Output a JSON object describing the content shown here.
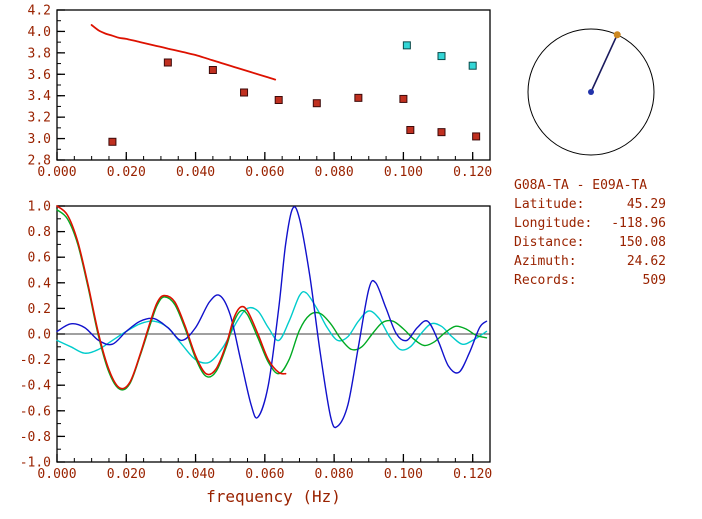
{
  "style": {
    "ink": "#992200",
    "axis": "#000000",
    "background": "#ffffff"
  },
  "station_info": {
    "pair": "G08A-TA - E09A-TA",
    "fields": [
      {
        "label": "Latitude:",
        "value": "45.29"
      },
      {
        "label": "Longitude:",
        "value": "-118.96"
      },
      {
        "label": "Distance:",
        "value": "150.08"
      },
      {
        "label": "Azimuth:",
        "value": "24.62"
      },
      {
        "label": "Records:",
        "value": "509"
      }
    ]
  },
  "compass": {
    "azimuth_deg": 24.62,
    "line_color": "#1b1b5e",
    "center_dot_color": "#2233aa",
    "end_dot_color": "#cc8822"
  },
  "chart_data": [
    {
      "type": "scatter",
      "title": "",
      "xlabel": "",
      "ylabel": "",
      "xlim": [
        0,
        0.125
      ],
      "ylim": [
        2.8,
        4.2
      ],
      "x_major_ticks": [
        0,
        0.02,
        0.04,
        0.06,
        0.08,
        0.1,
        0.12
      ],
      "x_tick_labels": [
        "0.000",
        "0.020",
        "0.040",
        "0.060",
        "0.080",
        "0.100",
        "0.120"
      ],
      "x_minor_step": 0.005,
      "y_major_ticks": [
        2.8,
        3.0,
        3.2,
        3.4,
        3.6,
        3.8,
        4.0,
        4.2
      ],
      "y_tick_labels": [
        "2.8",
        "3.0",
        "3.2",
        "3.4",
        "3.6",
        "3.8",
        "4.0",
        "4.2"
      ],
      "y_minor_step": 0.1,
      "grid": false,
      "zero_line": false,
      "series": [
        {
          "name": "reference-dispersion-curve",
          "type": "line",
          "color": "#dd1100",
          "width": 1.8,
          "points": [
            [
              0.01,
              4.06
            ],
            [
              0.012,
              4.01
            ],
            [
              0.014,
              3.98
            ],
            [
              0.016,
              3.96
            ],
            [
              0.018,
              3.94
            ],
            [
              0.02,
              3.93
            ],
            [
              0.024,
              3.9
            ],
            [
              0.028,
              3.87
            ],
            [
              0.032,
              3.84
            ],
            [
              0.036,
              3.81
            ],
            [
              0.04,
              3.78
            ],
            [
              0.044,
              3.74
            ],
            [
              0.048,
              3.7
            ],
            [
              0.052,
              3.66
            ],
            [
              0.056,
              3.62
            ],
            [
              0.06,
              3.58
            ],
            [
              0.063,
              3.55
            ]
          ]
        },
        {
          "name": "velocity-picks-red",
          "type": "scatter",
          "marker": "square",
          "color": "#c03020",
          "edge": "#3c0a0a",
          "size": 7,
          "points": [
            [
              0.016,
              2.97
            ],
            [
              0.032,
              3.71
            ],
            [
              0.045,
              3.64
            ],
            [
              0.054,
              3.43
            ],
            [
              0.064,
              3.36
            ],
            [
              0.075,
              3.33
            ],
            [
              0.087,
              3.38
            ],
            [
              0.1,
              3.37
            ],
            [
              0.102,
              3.08
            ],
            [
              0.111,
              3.06
            ],
            [
              0.121,
              3.02
            ]
          ]
        },
        {
          "name": "velocity-picks-cyan",
          "type": "scatter",
          "marker": "square",
          "color": "#33d6d6",
          "edge": "#0a4a4a",
          "size": 7,
          "points": [
            [
              0.101,
              3.87
            ],
            [
              0.111,
              3.77
            ],
            [
              0.12,
              3.68
            ]
          ]
        }
      ]
    },
    {
      "type": "line",
      "title": "",
      "xlabel": "frequency (Hz)",
      "ylabel": "",
      "xlim": [
        0,
        0.125
      ],
      "ylim": [
        -1.0,
        1.0
      ],
      "x_major_ticks": [
        0,
        0.02,
        0.04,
        0.06,
        0.08,
        0.1,
        0.12
      ],
      "x_tick_labels": [
        "0.000",
        "0.020",
        "0.040",
        "0.060",
        "0.080",
        "0.100",
        "0.120"
      ],
      "x_minor_step": 0.005,
      "y_major_ticks": [
        -1.0,
        -0.8,
        -0.6,
        -0.4,
        -0.2,
        0.0,
        0.2,
        0.4,
        0.6,
        0.8,
        1.0
      ],
      "y_tick_labels": [
        "-1.0",
        "-0.8",
        "-0.6",
        "-0.4",
        "-0.2",
        "0.0",
        "0.2",
        "0.4",
        "0.6",
        "0.8",
        "1.0"
      ],
      "y_minor_step": 0.1,
      "grid": false,
      "zero_line": true,
      "series": [
        {
          "name": "waveform-cyan",
          "type": "line",
          "color": "#00cccc",
          "width": 1.4,
          "points": [
            [
              0.0,
              -0.05
            ],
            [
              0.004,
              -0.1
            ],
            [
              0.008,
              -0.15
            ],
            [
              0.012,
              -0.12
            ],
            [
              0.016,
              -0.05
            ],
            [
              0.02,
              0.02
            ],
            [
              0.024,
              0.08
            ],
            [
              0.028,
              0.1
            ],
            [
              0.032,
              0.05
            ],
            [
              0.036,
              -0.08
            ],
            [
              0.04,
              -0.2
            ],
            [
              0.044,
              -0.22
            ],
            [
              0.048,
              -0.1
            ],
            [
              0.052,
              0.1
            ],
            [
              0.055,
              0.2
            ],
            [
              0.058,
              0.18
            ],
            [
              0.061,
              0.05
            ],
            [
              0.064,
              -0.05
            ],
            [
              0.067,
              0.1
            ],
            [
              0.07,
              0.3
            ],
            [
              0.072,
              0.32
            ],
            [
              0.075,
              0.2
            ],
            [
              0.078,
              0.05
            ],
            [
              0.081,
              -0.05
            ],
            [
              0.084,
              -0.02
            ],
            [
              0.087,
              0.1
            ],
            [
              0.09,
              0.18
            ],
            [
              0.093,
              0.12
            ],
            [
              0.096,
              -0.02
            ],
            [
              0.099,
              -0.12
            ],
            [
              0.102,
              -0.1
            ],
            [
              0.105,
              0.0
            ],
            [
              0.108,
              0.08
            ],
            [
              0.111,
              0.06
            ],
            [
              0.114,
              -0.02
            ],
            [
              0.117,
              -0.08
            ],
            [
              0.12,
              -0.05
            ],
            [
              0.124,
              0.02
            ]
          ]
        },
        {
          "name": "waveform-green",
          "type": "line",
          "color": "#00aa22",
          "width": 1.4,
          "points": [
            [
              0.0,
              0.97
            ],
            [
              0.003,
              0.9
            ],
            [
              0.006,
              0.7
            ],
            [
              0.009,
              0.36
            ],
            [
              0.012,
              -0.02
            ],
            [
              0.015,
              -0.3
            ],
            [
              0.018,
              -0.43
            ],
            [
              0.021,
              -0.39
            ],
            [
              0.024,
              -0.17
            ],
            [
              0.027,
              0.08
            ],
            [
              0.029,
              0.23
            ],
            [
              0.031,
              0.29
            ],
            [
              0.034,
              0.23
            ],
            [
              0.037,
              0.04
            ],
            [
              0.04,
              -0.19
            ],
            [
              0.043,
              -0.33
            ],
            [
              0.046,
              -0.29
            ],
            [
              0.049,
              -0.09
            ],
            [
              0.051,
              0.09
            ],
            [
              0.053,
              0.18
            ],
            [
              0.055,
              0.15
            ],
            [
              0.058,
              -0.03
            ],
            [
              0.061,
              -0.22
            ],
            [
              0.064,
              -0.31
            ],
            [
              0.067,
              -0.2
            ],
            [
              0.07,
              0.03
            ],
            [
              0.073,
              0.15
            ],
            [
              0.076,
              0.16
            ],
            [
              0.079,
              0.08
            ],
            [
              0.082,
              -0.04
            ],
            [
              0.085,
              -0.12
            ],
            [
              0.088,
              -0.1
            ],
            [
              0.091,
              0.0
            ],
            [
              0.094,
              0.09
            ],
            [
              0.097,
              0.1
            ],
            [
              0.1,
              0.04
            ],
            [
              0.103,
              -0.04
            ],
            [
              0.106,
              -0.09
            ],
            [
              0.109,
              -0.06
            ],
            [
              0.112,
              0.01
            ],
            [
              0.115,
              0.06
            ],
            [
              0.118,
              0.04
            ],
            [
              0.121,
              -0.01
            ],
            [
              0.124,
              -0.03
            ]
          ]
        },
        {
          "name": "waveform-blue",
          "type": "line",
          "color": "#1111cc",
          "width": 1.4,
          "points": [
            [
              0.0,
              0.02
            ],
            [
              0.004,
              0.08
            ],
            [
              0.008,
              0.05
            ],
            [
              0.012,
              -0.05
            ],
            [
              0.016,
              -0.08
            ],
            [
              0.02,
              0.02
            ],
            [
              0.024,
              0.1
            ],
            [
              0.028,
              0.12
            ],
            [
              0.032,
              0.05
            ],
            [
              0.036,
              -0.05
            ],
            [
              0.04,
              0.05
            ],
            [
              0.044,
              0.25
            ],
            [
              0.047,
              0.3
            ],
            [
              0.05,
              0.15
            ],
            [
              0.053,
              -0.2
            ],
            [
              0.056,
              -0.55
            ],
            [
              0.058,
              -0.65
            ],
            [
              0.061,
              -0.4
            ],
            [
              0.064,
              0.2
            ],
            [
              0.066,
              0.7
            ],
            [
              0.068,
              0.98
            ],
            [
              0.07,
              0.9
            ],
            [
              0.073,
              0.45
            ],
            [
              0.076,
              -0.15
            ],
            [
              0.079,
              -0.65
            ],
            [
              0.081,
              -0.72
            ],
            [
              0.084,
              -0.55
            ],
            [
              0.087,
              -0.1
            ],
            [
              0.09,
              0.35
            ],
            [
              0.092,
              0.4
            ],
            [
              0.095,
              0.2
            ],
            [
              0.098,
              0.0
            ],
            [
              0.101,
              -0.05
            ],
            [
              0.104,
              0.05
            ],
            [
              0.107,
              0.1
            ],
            [
              0.11,
              -0.05
            ],
            [
              0.113,
              -0.25
            ],
            [
              0.116,
              -0.3
            ],
            [
              0.119,
              -0.15
            ],
            [
              0.122,
              0.05
            ],
            [
              0.124,
              0.1
            ]
          ]
        },
        {
          "name": "waveform-red",
          "type": "line",
          "color": "#dd1100",
          "width": 1.6,
          "points": [
            [
              0.0,
              1.0
            ],
            [
              0.003,
              0.93
            ],
            [
              0.006,
              0.72
            ],
            [
              0.009,
              0.38
            ],
            [
              0.012,
              0.0
            ],
            [
              0.015,
              -0.28
            ],
            [
              0.018,
              -0.42
            ],
            [
              0.021,
              -0.38
            ],
            [
              0.024,
              -0.16
            ],
            [
              0.027,
              0.1
            ],
            [
              0.029,
              0.25
            ],
            [
              0.031,
              0.3
            ],
            [
              0.034,
              0.25
            ],
            [
              0.037,
              0.06
            ],
            [
              0.04,
              -0.17
            ],
            [
              0.043,
              -0.31
            ],
            [
              0.046,
              -0.27
            ],
            [
              0.049,
              -0.07
            ],
            [
              0.051,
              0.12
            ],
            [
              0.053,
              0.21
            ],
            [
              0.055,
              0.18
            ],
            [
              0.058,
              0.0
            ],
            [
              0.061,
              -0.2
            ],
            [
              0.064,
              -0.3
            ],
            [
              0.066,
              -0.31
            ]
          ]
        }
      ]
    }
  ]
}
